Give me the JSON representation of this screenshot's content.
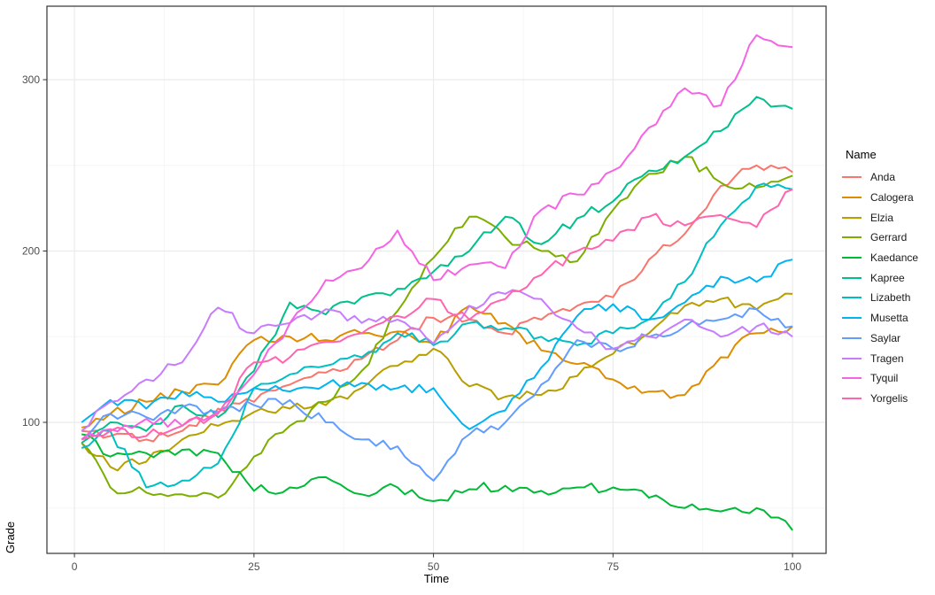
{
  "chart_data": {
    "type": "line",
    "title": "",
    "xlabel": "Time",
    "ylabel": "Grade",
    "legend_title": "Name",
    "legend_position": "right",
    "grid": true,
    "xlim": [
      -4,
      105
    ],
    "ylim": [
      23,
      343
    ],
    "x_major_ticks": [
      0,
      25,
      50,
      75,
      100
    ],
    "y_major_ticks": [
      100,
      200,
      300
    ],
    "x_minor_ticks": [
      12.5,
      37.5,
      62.5,
      87.5
    ],
    "y_minor_ticks": [
      50,
      150,
      250
    ],
    "x": [
      1,
      5,
      10,
      15,
      20,
      25,
      30,
      35,
      40,
      45,
      50,
      55,
      60,
      65,
      70,
      75,
      80,
      85,
      90,
      95,
      100
    ],
    "series": [
      {
        "name": "Anda",
        "color": "#F8766D",
        "values": [
          95,
          92,
          90,
          95,
          108,
          112,
          122,
          129,
          137,
          148,
          161,
          160,
          152,
          160,
          168,
          173,
          195,
          210,
          238,
          250,
          246
        ]
      },
      {
        "name": "Calogera",
        "color": "#DE8C00",
        "values": [
          97,
          105,
          112,
          118,
          122,
          148,
          150,
          148,
          152,
          153,
          146,
          168,
          158,
          142,
          134,
          125,
          118,
          116,
          138,
          152,
          156
        ]
      },
      {
        "name": "Elzia",
        "color": "#B79F00",
        "values": [
          88,
          74,
          77,
          90,
          98,
          106,
          108,
          110,
          120,
          133,
          143,
          121,
          115,
          116,
          127,
          140,
          152,
          168,
          172,
          166,
          175
        ]
      },
      {
        "name": "Gerrard",
        "color": "#7CAE00",
        "values": [
          88,
          62,
          59,
          58,
          56,
          80,
          98,
          112,
          130,
          165,
          196,
          220,
          208,
          200,
          194,
          224,
          245,
          255,
          240,
          237,
          244
        ]
      },
      {
        "name": "Kaedance",
        "color": "#00BA38",
        "values": [
          93,
          80,
          82,
          84,
          82,
          60,
          62,
          68,
          58,
          62,
          54,
          61,
          63,
          60,
          62,
          62,
          56,
          50,
          48,
          50,
          37
        ]
      },
      {
        "name": "Kapree",
        "color": "#00C08B",
        "values": [
          88,
          100,
          95,
          110,
          103,
          130,
          170,
          163,
          173,
          178,
          188,
          200,
          220,
          204,
          219,
          229,
          247,
          255,
          270,
          290,
          283
        ]
      },
      {
        "name": "Lizabeth",
        "color": "#00BFC4",
        "values": [
          85,
          95,
          62,
          66,
          76,
          120,
          128,
          133,
          138,
          152,
          145,
          158,
          155,
          150,
          145,
          152,
          160,
          182,
          215,
          238,
          236
        ]
      },
      {
        "name": "Musetta",
        "color": "#00B4F0",
        "values": [
          100,
          113,
          108,
          118,
          112,
          120,
          118,
          122,
          123,
          120,
          120,
          96,
          107,
          132,
          162,
          169,
          160,
          170,
          185,
          182,
          195
        ]
      },
      {
        "name": "Saylar",
        "color": "#619CFF",
        "values": [
          90,
          105,
          103,
          109,
          106,
          110,
          113,
          100,
          90,
          86,
          66,
          93,
          100,
          122,
          148,
          143,
          150,
          156,
          160,
          166,
          156
        ]
      },
      {
        "name": "Tragen",
        "color": "#C77CFF",
        "values": [
          95,
          112,
          125,
          135,
          167,
          152,
          158,
          166,
          158,
          160,
          146,
          168,
          175,
          172,
          155,
          143,
          150,
          160,
          150,
          156,
          150
        ]
      },
      {
        "name": "Tyquil",
        "color": "#F564E3",
        "values": [
          90,
          96,
          102,
          98,
          106,
          128,
          158,
          183,
          190,
          212,
          183,
          192,
          190,
          224,
          233,
          247,
          272,
          295,
          285,
          326,
          319
        ]
      },
      {
        "name": "Yorgelis",
        "color": "#FF64B0",
        "values": [
          90,
          95,
          92,
          98,
          105,
          135,
          138,
          147,
          152,
          162,
          172,
          160,
          172,
          186,
          200,
          206,
          220,
          215,
          221,
          214,
          236
        ]
      }
    ]
  },
  "style": {
    "panel_border_color": "#333333",
    "major_grid_color": "#EBEBEB",
    "minor_grid_color": "#F5F5F5",
    "tick_label_color": "#4D4D4D",
    "tick_mark_color": "#333333",
    "background": "#FFFFFF"
  }
}
